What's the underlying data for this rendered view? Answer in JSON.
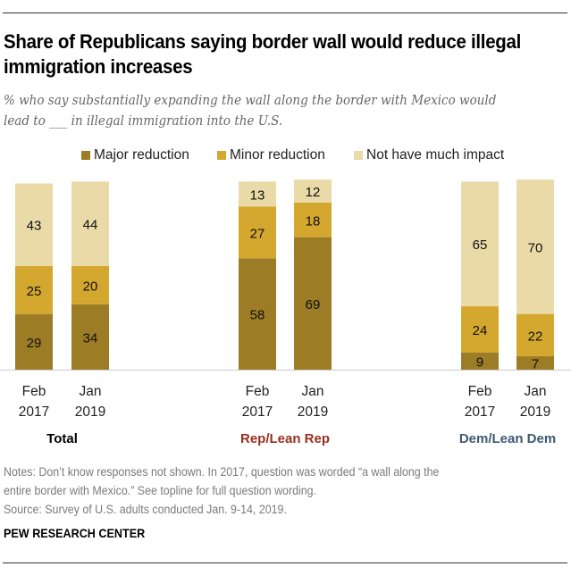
{
  "title": "Share of Republicans saying border wall would reduce illegal immigration increases",
  "subtitle": "% who say substantially expanding the wall along the border with Mexico would lead to ___ in illegal immigration into the U.S.",
  "legend": [
    {
      "label": "Major reduction",
      "color": "#9c7c24"
    },
    {
      "label": "Minor reduction",
      "color": "#d4a72f"
    },
    {
      "label": "Not have much impact",
      "color": "#e9daa8"
    }
  ],
  "notes": [
    "Notes: Don’t know responses not shown. In 2017, question was worded “a wall along the",
    "entire border with Mexico.” See topline for full question wording.",
    "Source: Survey of U.S. adults conducted Jan. 9-14, 2019."
  ],
  "brand": "PEW RESEARCH CENTER",
  "chart_data": {
    "type": "bar",
    "stacked": true,
    "title": "Share of Republicans saying border wall would reduce illegal immigration increases",
    "xlabel": "",
    "ylabel": "",
    "ylim": [
      0,
      100
    ],
    "grid": false,
    "legend_position": "top",
    "series_names": [
      "Major reduction",
      "Minor reduction",
      "Not have much impact"
    ],
    "colors": [
      "#9c7c24",
      "#d4a72f",
      "#e9daa8"
    ],
    "groups": [
      {
        "name": "Total",
        "name_color": "#000000",
        "bars": [
          {
            "line1": "Feb",
            "line2": "2017",
            "values": [
              29,
              25,
              43
            ]
          },
          {
            "line1": "Jan",
            "line2": "2019",
            "values": [
              34,
              20,
              44
            ]
          }
        ]
      },
      {
        "name": "Rep/Lean Rep",
        "name_color": "#9a2d1f",
        "bars": [
          {
            "line1": "Feb",
            "line2": "2017",
            "values": [
              58,
              27,
              13
            ]
          },
          {
            "line1": "Jan",
            "line2": "2019",
            "values": [
              69,
              18,
              12
            ]
          }
        ]
      },
      {
        "name": "Dem/Lean Dem",
        "name_color": "#3d5a73",
        "bars": [
          {
            "line1": "Feb",
            "line2": "2017",
            "values": [
              9,
              24,
              65
            ]
          },
          {
            "line1": "Jan",
            "line2": "2019",
            "values": [
              7,
              22,
              70
            ]
          }
        ]
      }
    ]
  }
}
